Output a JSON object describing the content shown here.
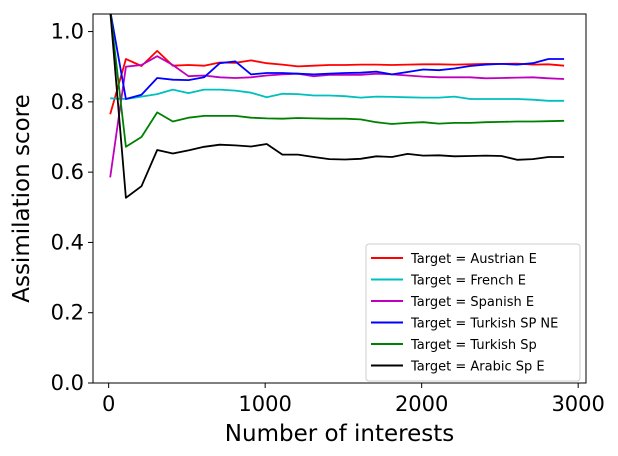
{
  "chart_data": {
    "type": "line",
    "title": "",
    "xlabel": "Number of interests",
    "ylabel": "Assimilation score",
    "xlim": [
      -100,
      3050
    ],
    "ylim": [
      0.0,
      1.05
    ],
    "x_ticks": [
      0,
      1000,
      2000,
      3000
    ],
    "y_ticks": [
      0.0,
      0.2,
      0.4,
      0.6,
      0.8,
      1.0
    ],
    "x_tick_labels": [
      "0",
      "1000",
      "2000",
      "3000"
    ],
    "y_tick_labels": [
      "0.0",
      "0.2",
      "0.4",
      "0.6",
      "0.8",
      "1.0"
    ],
    "grid": false,
    "legend_position": "lower-right",
    "x": [
      10,
      110,
      210,
      310,
      410,
      510,
      610,
      710,
      810,
      910,
      1010,
      1110,
      1210,
      1310,
      1410,
      1510,
      1610,
      1710,
      1810,
      1910,
      2010,
      2110,
      2210,
      2310,
      2410,
      2510,
      2610,
      2710,
      2810,
      2910
    ],
    "series": [
      {
        "name": "Target = Austrian E",
        "color": "#ff0000",
        "values": [
          0.765,
          0.922,
          0.902,
          0.945,
          0.903,
          0.905,
          0.903,
          0.912,
          0.911,
          0.918,
          0.91,
          0.906,
          0.901,
          0.903,
          0.905,
          0.905,
          0.906,
          0.906,
          0.905,
          0.906,
          0.907,
          0.907,
          0.906,
          0.907,
          0.908,
          0.908,
          0.909,
          0.906,
          0.907,
          0.903
        ]
      },
      {
        "name": "Target = French E",
        "color": "#00bfbf",
        "values": [
          0.81,
          0.808,
          0.815,
          0.822,
          0.835,
          0.825,
          0.835,
          0.835,
          0.832,
          0.826,
          0.813,
          0.823,
          0.822,
          0.818,
          0.818,
          0.816,
          0.812,
          0.815,
          0.814,
          0.813,
          0.812,
          0.812,
          0.815,
          0.808,
          0.808,
          0.808,
          0.808,
          0.806,
          0.803,
          0.803
        ]
      },
      {
        "name": "Target = Spanish E",
        "color": "#bf00bf",
        "values": [
          0.585,
          0.9,
          0.905,
          0.93,
          0.905,
          0.873,
          0.875,
          0.87,
          0.868,
          0.87,
          0.875,
          0.878,
          0.88,
          0.873,
          0.877,
          0.877,
          0.877,
          0.88,
          0.878,
          0.875,
          0.872,
          0.87,
          0.87,
          0.87,
          0.867,
          0.868,
          0.869,
          0.87,
          0.867,
          0.865
        ]
      },
      {
        "name": "Target = Turkish SP NE",
        "color": "#0000ff",
        "values": [
          1.06,
          0.808,
          0.82,
          0.868,
          0.863,
          0.862,
          0.87,
          0.91,
          0.915,
          0.878,
          0.882,
          0.882,
          0.88,
          0.878,
          0.88,
          0.882,
          0.883,
          0.886,
          0.878,
          0.885,
          0.892,
          0.89,
          0.895,
          0.902,
          0.906,
          0.908,
          0.906,
          0.91,
          0.922,
          0.922
        ]
      },
      {
        "name": "Target = Turkish Sp",
        "color": "#008000",
        "values": [
          1.06,
          0.672,
          0.7,
          0.77,
          0.744,
          0.755,
          0.76,
          0.76,
          0.76,
          0.755,
          0.753,
          0.752,
          0.754,
          0.753,
          0.752,
          0.752,
          0.75,
          0.742,
          0.737,
          0.74,
          0.742,
          0.738,
          0.74,
          0.74,
          0.742,
          0.743,
          0.744,
          0.744,
          0.745,
          0.746
        ]
      },
      {
        "name": "Target = Arabic Sp E",
        "color": "#000000",
        "values": [
          1.06,
          0.527,
          0.56,
          0.663,
          0.653,
          0.662,
          0.672,
          0.678,
          0.676,
          0.673,
          0.68,
          0.65,
          0.65,
          0.643,
          0.637,
          0.636,
          0.638,
          0.645,
          0.643,
          0.652,
          0.647,
          0.648,
          0.645,
          0.646,
          0.647,
          0.646,
          0.635,
          0.637,
          0.643,
          0.643
        ]
      }
    ]
  }
}
